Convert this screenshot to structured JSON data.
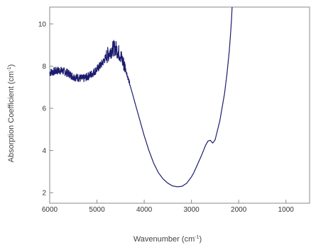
{
  "chart_data": {
    "type": "line",
    "title": "",
    "xlabel": "Wavenumber",
    "xlabel_unit": "cm",
    "xlabel_unit_exp": "-1",
    "ylabel": "Absorption Coefficient",
    "ylabel_unit": "cm",
    "ylabel_unit_exp": "-1",
    "xlim": [
      6000,
      500
    ],
    "ylim": [
      1.5,
      10.8
    ],
    "x_reversed": true,
    "grid": false,
    "legend": "none",
    "x_ticks": [
      6000,
      5000,
      4000,
      3000,
      2000,
      1000
    ],
    "x_tick_labels": [
      "6000",
      "5000",
      "4000",
      "3000",
      "2000",
      "1000"
    ],
    "y_ticks": [
      2,
      4,
      6,
      8,
      10
    ],
    "y_tick_labels": [
      "2",
      "4",
      "6",
      "8",
      "10"
    ],
    "line_color": "#1c1c6e",
    "series": [
      {
        "x": [
          6000,
          5900,
          5800,
          5700,
          5600,
          5500,
          5400,
          5300,
          5200,
          5100,
          5000,
          4900,
          4800,
          4700,
          4650,
          4600,
          4500,
          4400,
          4300,
          4200,
          4100,
          4000,
          3900,
          3800,
          3700,
          3600,
          3500,
          3400,
          3300,
          3200,
          3100,
          3000,
          2950,
          2900,
          2800,
          2700,
          2650,
          2600,
          2550,
          2500,
          2400,
          2300,
          2250,
          2200,
          2170,
          2150,
          2140
        ],
        "y": [
          7.7,
          7.75,
          7.8,
          7.75,
          7.65,
          7.5,
          7.45,
          7.4,
          7.5,
          7.65,
          7.85,
          8.1,
          8.45,
          8.75,
          8.85,
          8.85,
          8.5,
          7.9,
          7.1,
          6.3,
          5.5,
          4.7,
          4.0,
          3.4,
          2.95,
          2.65,
          2.45,
          2.32,
          2.28,
          2.3,
          2.45,
          2.75,
          2.95,
          3.2,
          3.7,
          4.25,
          4.45,
          4.48,
          4.35,
          4.5,
          5.4,
          6.7,
          7.6,
          8.7,
          9.6,
          10.3,
          10.8
        ]
      }
    ]
  }
}
